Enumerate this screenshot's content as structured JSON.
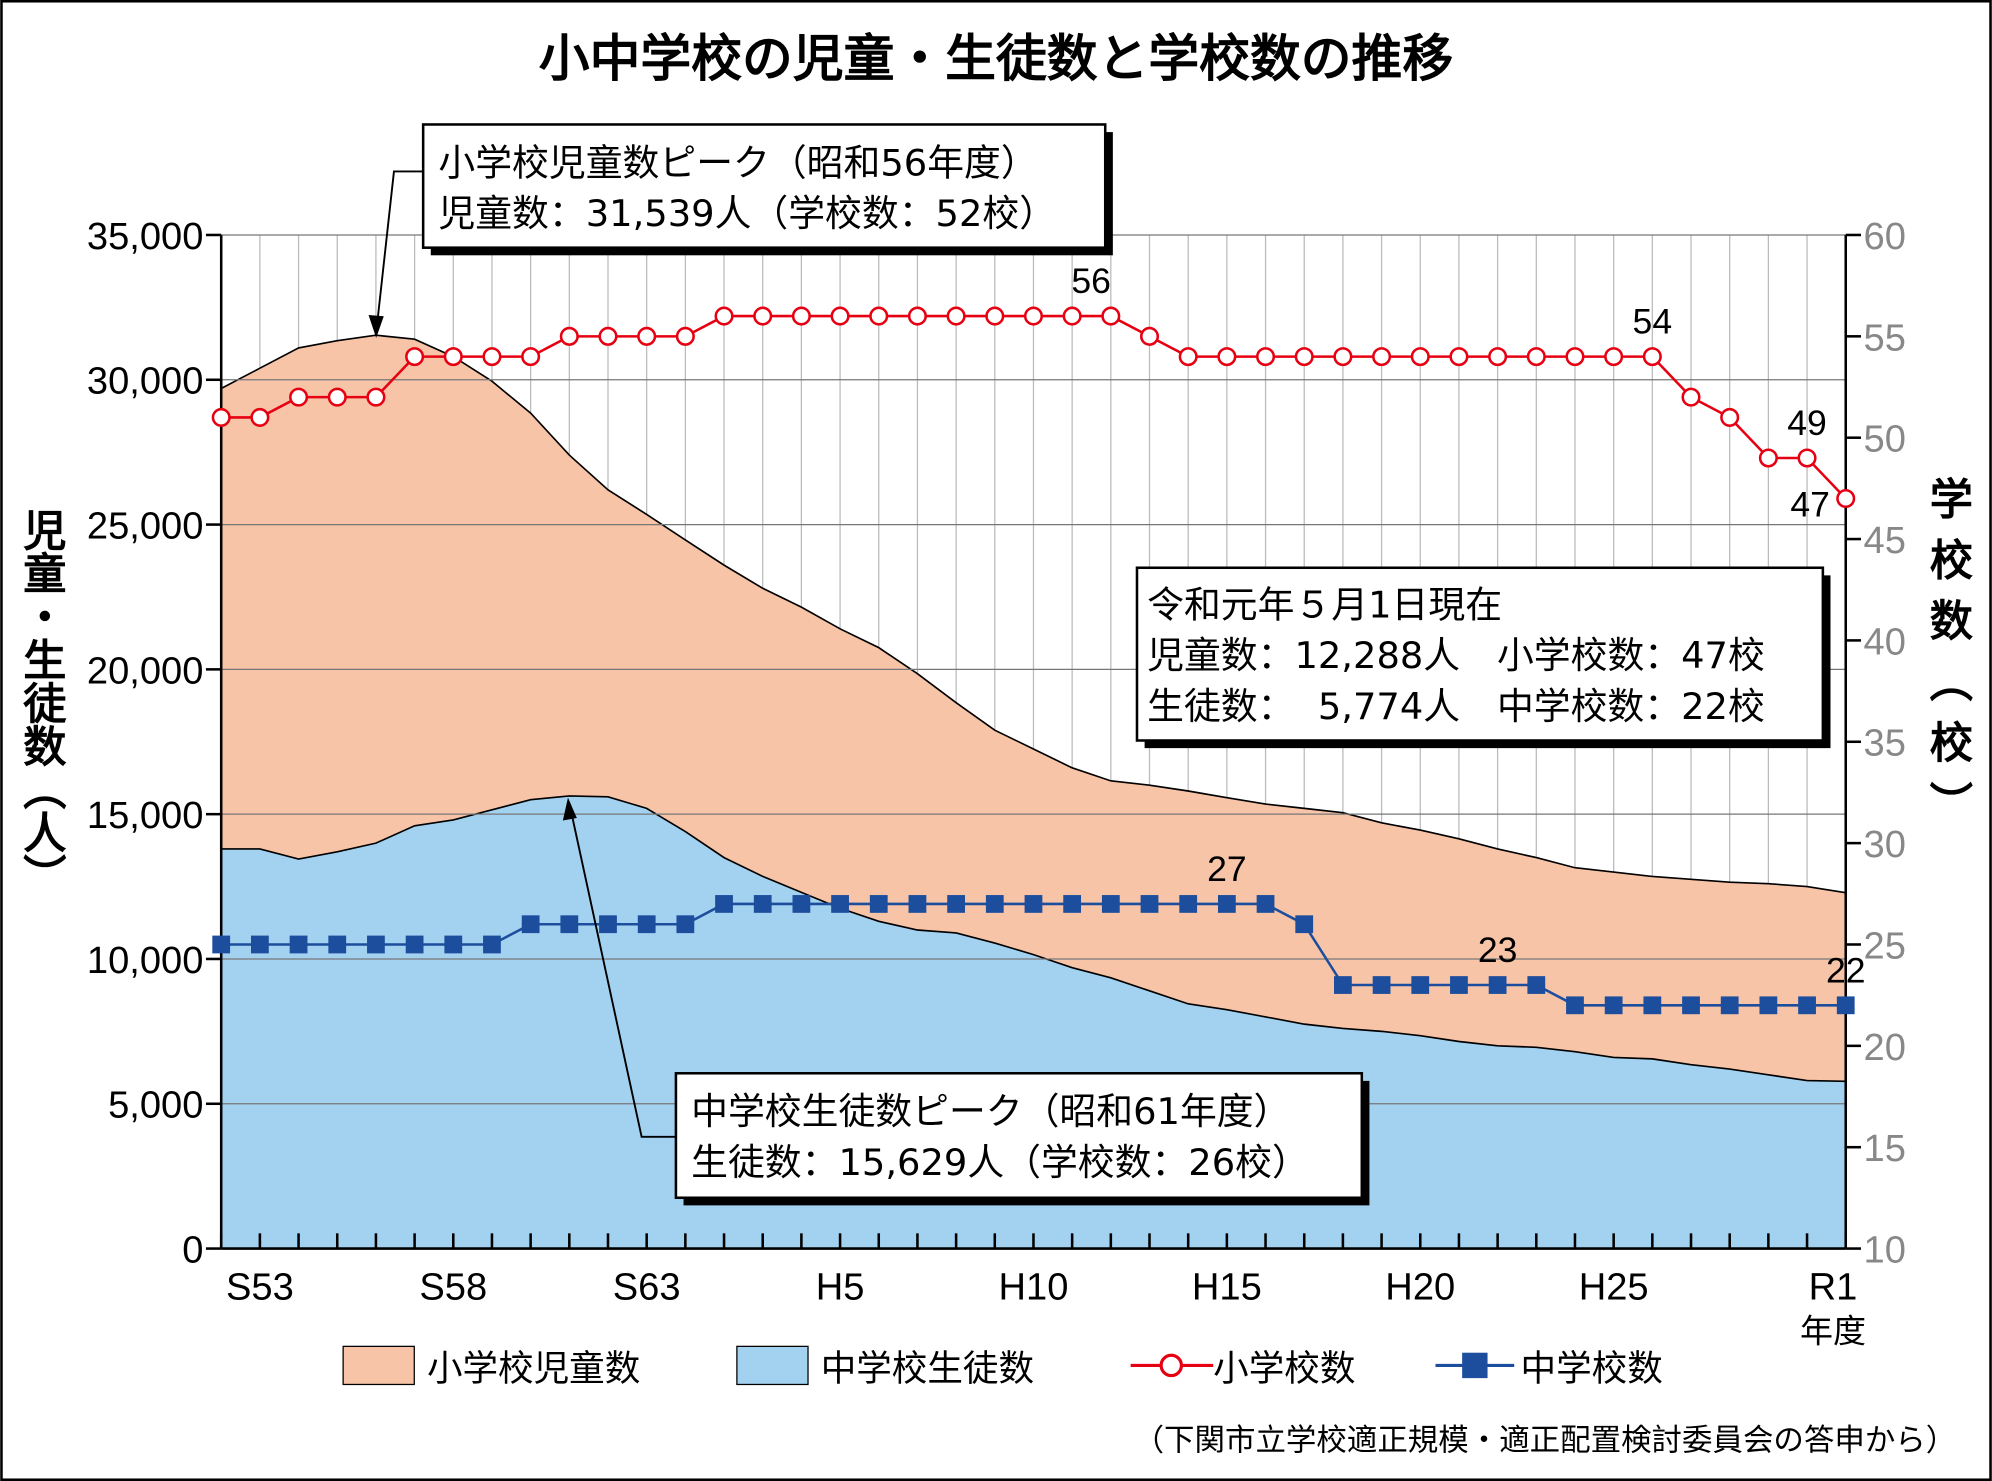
{
  "chart_data": {
    "type": "area+line",
    "title": "小中学校の児童・生徒数と学校数の推移",
    "ylabel_left": "児童・生徒数（人）",
    "ylabel_right": "学校数（校）",
    "xlabel": "年度",
    "ylim_left": [
      0,
      35000
    ],
    "ylim_right": [
      10,
      60
    ],
    "yticks_left": [
      "0",
      "5,000",
      "10,000",
      "15,000",
      "20,000",
      "25,000",
      "30,000",
      "35,000"
    ],
    "yticks_right": [
      "10",
      "15",
      "20",
      "25",
      "30",
      "35",
      "40",
      "45",
      "50",
      "55",
      "60"
    ],
    "x_tick_labels": [
      {
        "i": 1,
        "label": "S53"
      },
      {
        "i": 6,
        "label": "S58"
      },
      {
        "i": 11,
        "label": "S63"
      },
      {
        "i": 16,
        "label": "H5"
      },
      {
        "i": 21,
        "label": "H10"
      },
      {
        "i": 26,
        "label": "H15"
      },
      {
        "i": 31,
        "label": "H20"
      },
      {
        "i": 36,
        "label": "H25"
      },
      {
        "i": 42,
        "label": "R1"
      }
    ],
    "x_count": 43,
    "series": [
      {
        "name": "小学校児童数",
        "kind": "area",
        "axis": "left",
        "color": "#f7c4a8",
        "values": [
          29700,
          30400,
          31100,
          31350,
          31539,
          31400,
          30800,
          29950,
          28850,
          27400,
          26200,
          25350,
          24470,
          23600,
          22800,
          22150,
          21400,
          20750,
          19850,
          18850,
          17900,
          17250,
          16600,
          16150,
          16000,
          15800,
          15570,
          15350,
          15200,
          15050,
          14700,
          14450,
          14150,
          13800,
          13500,
          13150,
          13000,
          12850,
          12750,
          12650,
          12600,
          12500,
          12288
        ]
      },
      {
        "name": "中学校生徒数",
        "kind": "area",
        "axis": "left",
        "color": "#a3d1f0",
        "values": [
          13800,
          13800,
          13450,
          13700,
          14000,
          14600,
          14800,
          15150,
          15500,
          15629,
          15600,
          15200,
          14400,
          13500,
          12850,
          12300,
          11750,
          11300,
          11000,
          10900,
          10550,
          10150,
          9700,
          9350,
          8900,
          8450,
          8250,
          8000,
          7750,
          7600,
          7500,
          7350,
          7150,
          7000,
          6950,
          6800,
          6600,
          6550,
          6350,
          6200,
          6000,
          5800,
          5774
        ]
      },
      {
        "name": "小学校数",
        "kind": "line",
        "axis": "right",
        "color": "#e60012",
        "marker": "open-circle",
        "values": [
          51,
          51,
          52,
          52,
          52,
          54,
          54,
          54,
          54,
          55,
          55,
          55,
          55,
          56,
          56,
          56,
          56,
          56,
          56,
          56,
          56,
          56,
          56,
          56,
          55,
          54,
          54,
          54,
          54,
          54,
          54,
          54,
          54,
          54,
          54,
          54,
          54,
          54,
          52,
          51,
          49,
          49,
          47
        ]
      },
      {
        "name": "中学校数",
        "kind": "line",
        "axis": "right",
        "color": "#1d4e9e",
        "marker": "filled-square",
        "values": [
          25,
          25,
          25,
          25,
          25,
          25,
          25,
          25,
          26,
          26,
          26,
          26,
          26,
          27,
          27,
          27,
          27,
          27,
          27,
          27,
          27,
          27,
          27,
          27,
          27,
          27,
          27,
          27,
          26,
          23,
          23,
          23,
          23,
          23,
          23,
          22,
          22,
          22,
          22,
          22,
          22,
          22,
          22
        ]
      }
    ],
    "data_labels": [
      {
        "series": 2,
        "i": 22,
        "text": "56"
      },
      {
        "series": 2,
        "i": 37,
        "text": "54"
      },
      {
        "series": 2,
        "i": 41,
        "text": "49"
      },
      {
        "series": 2,
        "i": 42,
        "text": "47"
      },
      {
        "series": 3,
        "i": 26,
        "text": "27"
      },
      {
        "series": 3,
        "i": 33,
        "text": "23"
      },
      {
        "series": 3,
        "i": 42,
        "text": "22"
      }
    ],
    "annotations": {
      "elem_peak": {
        "line1": "小学校児童数ピーク（昭和56年度）",
        "line2": "児童数：31,539人（学校数：52校）"
      },
      "jh_peak": {
        "line1": "中学校生徒数ピーク（昭和61年度）",
        "line2": "生徒数：15,629人（学校数：26校）"
      },
      "current": {
        "line1": "令和元年５月1日現在",
        "line2": "児童数：12,288人　小学校数：47校",
        "line3": "生徒数：  5,774人　中学校数：22校"
      }
    },
    "legend": [
      "小学校児童数",
      "中学校生徒数",
      "小学校数",
      "中学校数"
    ],
    "legend_position": "bottom",
    "source": "（下関市立学校適正規模・適正配置検討委員会の答申から）",
    "grid": true
  }
}
